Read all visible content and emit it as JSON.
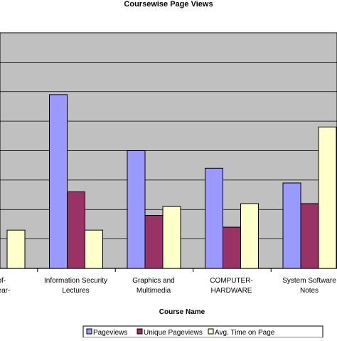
{
  "chart_data": {
    "type": "bar",
    "title": "Coursewise Page Views",
    "xlabel": "Course Name",
    "ylabel": "",
    "grid": true,
    "legend_position": "bottom",
    "categories": [
      [
        "ls-of-",
        "st-Year-"
      ],
      [
        "Information Security",
        "Lectures"
      ],
      [
        "Graphics and",
        "Multimedia"
      ],
      [
        "COMPUTER-",
        "HARDWARE"
      ],
      [
        "System Software",
        "Notes"
      ]
    ],
    "ylim": [
      0,
      8
    ],
    "series": [
      {
        "name": "Pageviews",
        "color": "#9999ff",
        "values": [
          null,
          5.9,
          4.0,
          3.4,
          2.9
        ]
      },
      {
        "name": "Unique Pageviews",
        "color": "#993366",
        "values": [
          null,
          2.6,
          1.8,
          1.4,
          2.2
        ]
      },
      {
        "name": "Avg. Time on Page",
        "color": "#ffffcc",
        "values": [
          1.3,
          1.3,
          2.1,
          2.2,
          4.8
        ]
      }
    ],
    "colors": {
      "plot_background": "#c0c0c0",
      "gridline": "#000000",
      "bar_stroke": "#000000"
    }
  }
}
